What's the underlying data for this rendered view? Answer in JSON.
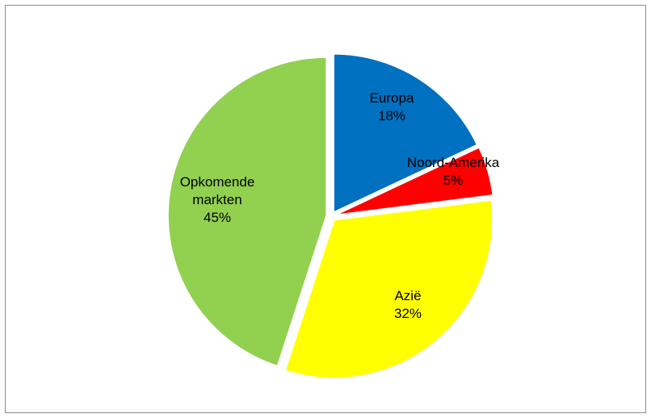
{
  "chart_data": {
    "type": "pie",
    "title": "",
    "slices": [
      {
        "label": "Europa",
        "value": 18,
        "percent_label": "18%",
        "color": "#0070C0",
        "label_lines": [
          "Europa",
          "18%"
        ]
      },
      {
        "label": "Noord-Amerika",
        "value": 5,
        "percent_label": "5%",
        "color": "#FF0000",
        "label_lines": [
          "Noord-Amerika",
          "5%"
        ]
      },
      {
        "label": "Azië",
        "value": 32,
        "percent_label": "32%",
        "color": "#FFFF00",
        "label_lines": [
          "Azië",
          "32%"
        ]
      },
      {
        "label": "Opkomende markten",
        "value": 45,
        "percent_label": "45%",
        "color": "#92D050",
        "label_lines": [
          "Opkomende",
          "markten",
          "45%"
        ]
      }
    ],
    "legend": "none",
    "start_angle": "12 o'clock",
    "direction": "clockwise",
    "exploded": true
  }
}
